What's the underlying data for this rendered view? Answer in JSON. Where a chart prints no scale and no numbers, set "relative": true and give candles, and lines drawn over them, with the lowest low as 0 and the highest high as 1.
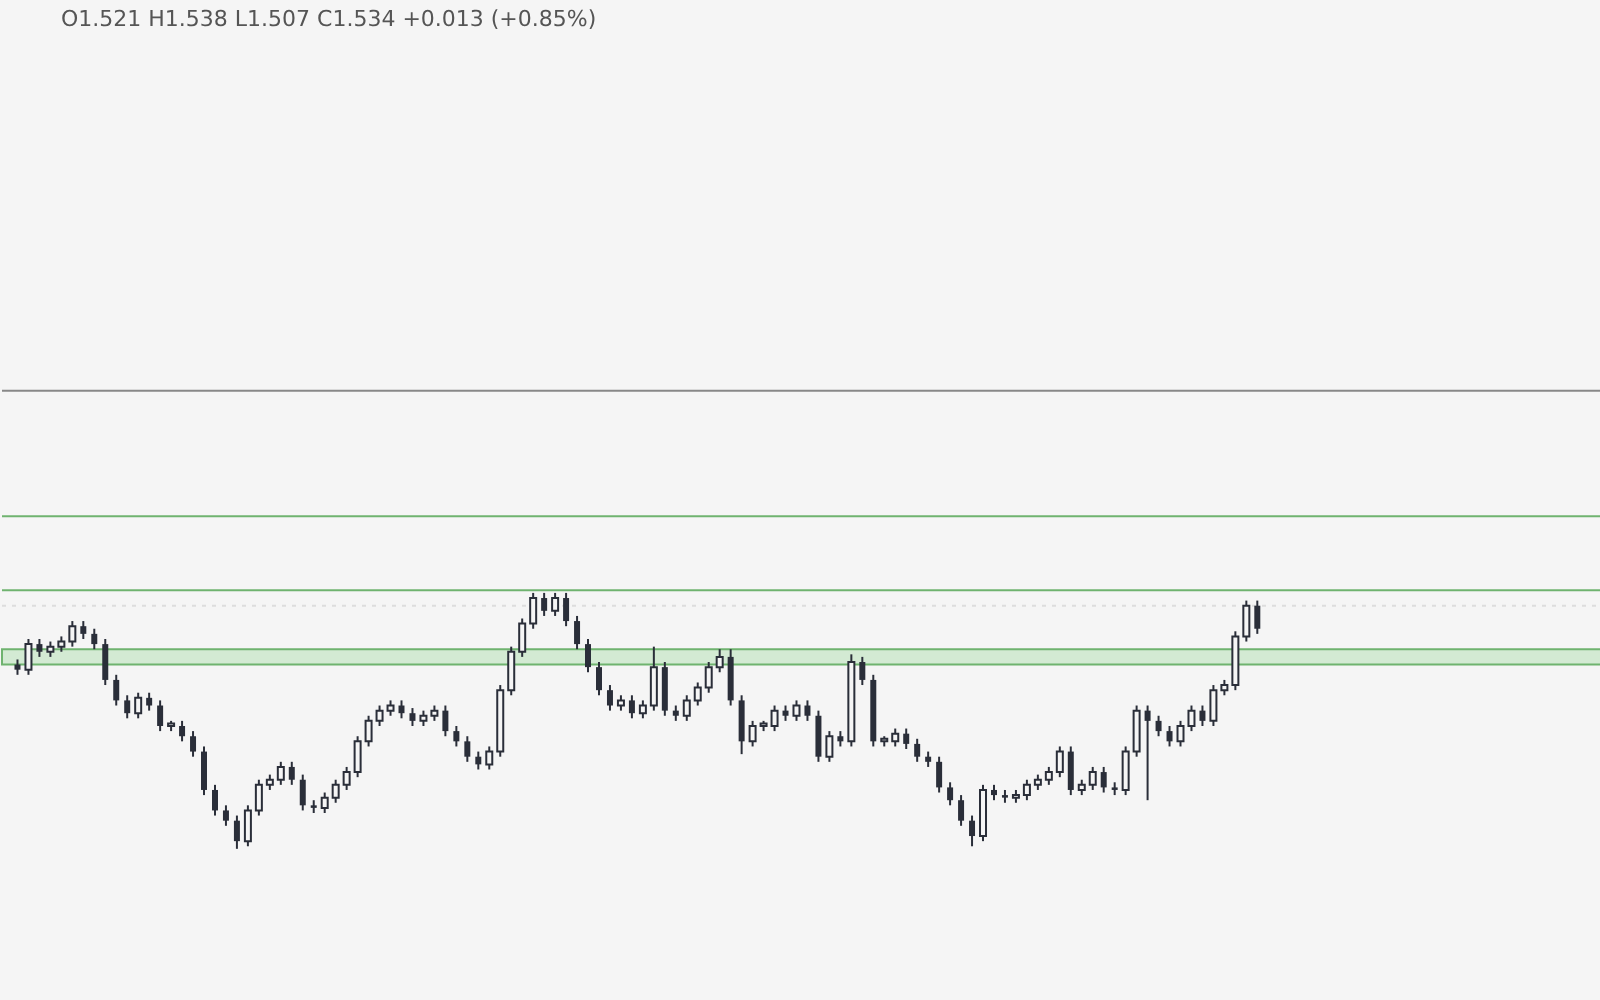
{
  "chart_data": {
    "type": "candlestick",
    "title": "O1.521 H1.538 L1.507 C1.534 +0.013 (+0.85%)",
    "relative": true,
    "tick_labels": false,
    "grid": false,
    "color": "#2a2e39",
    "categories": [
      null,
      null,
      null,
      null,
      null,
      null,
      null,
      null,
      null,
      null,
      null,
      null,
      null,
      null,
      null,
      null,
      null,
      null,
      null,
      null,
      null,
      null,
      null,
      null,
      null,
      null,
      null,
      null,
      null,
      null,
      null,
      null,
      null,
      null,
      null,
      null,
      null,
      null,
      null,
      null,
      null,
      null,
      null,
      null,
      null,
      null,
      null,
      null,
      null,
      null,
      null,
      null,
      null,
      null,
      null,
      null,
      null,
      null,
      null,
      null,
      null,
      null,
      null,
      null,
      null,
      null,
      null,
      null,
      null,
      null,
      null,
      null,
      null,
      null,
      null,
      null,
      null,
      null,
      null,
      null,
      null,
      null,
      null,
      null,
      null,
      null,
      null,
      null,
      null,
      null,
      null,
      null,
      null,
      null,
      null,
      null,
      null,
      null,
      null,
      null,
      null,
      null,
      null,
      null,
      null,
      null,
      null,
      null,
      null,
      null,
      null,
      null,
      null,
      null
    ],
    "ohlc": [
      [
        0.72,
        0.74,
        0.68,
        0.7
      ],
      [
        0.7,
        0.82,
        0.68,
        0.8
      ],
      [
        0.8,
        0.82,
        0.75,
        0.77
      ],
      [
        0.77,
        0.81,
        0.75,
        0.79
      ],
      [
        0.79,
        0.83,
        0.77,
        0.81
      ],
      [
        0.81,
        0.89,
        0.79,
        0.87
      ],
      [
        0.87,
        0.89,
        0.82,
        0.84
      ],
      [
        0.84,
        0.86,
        0.78,
        0.8
      ],
      [
        0.8,
        0.82,
        0.64,
        0.66
      ],
      [
        0.66,
        0.68,
        0.56,
        0.58
      ],
      [
        0.58,
        0.6,
        0.51,
        0.53
      ],
      [
        0.53,
        0.61,
        0.51,
        0.59
      ],
      [
        0.59,
        0.61,
        0.54,
        0.56
      ],
      [
        0.56,
        0.58,
        0.46,
        0.48
      ],
      [
        0.48,
        0.5,
        0.46,
        0.49
      ],
      [
        0.48,
        0.5,
        0.42,
        0.44
      ],
      [
        0.44,
        0.46,
        0.36,
        0.38
      ],
      [
        0.38,
        0.4,
        0.21,
        0.23
      ],
      [
        0.23,
        0.25,
        0.13,
        0.15
      ],
      [
        0.15,
        0.17,
        0.09,
        0.11
      ],
      [
        0.11,
        0.13,
        0.0,
        0.03
      ],
      [
        0.03,
        0.17,
        0.01,
        0.15
      ],
      [
        0.15,
        0.27,
        0.13,
        0.25
      ],
      [
        0.25,
        0.29,
        0.23,
        0.27
      ],
      [
        0.27,
        0.34,
        0.25,
        0.32
      ],
      [
        0.32,
        0.34,
        0.25,
        0.27
      ],
      [
        0.27,
        0.29,
        0.15,
        0.17
      ],
      [
        0.17,
        0.19,
        0.14,
        0.16
      ],
      [
        0.16,
        0.22,
        0.14,
        0.2
      ],
      [
        0.2,
        0.27,
        0.18,
        0.25
      ],
      [
        0.25,
        0.32,
        0.23,
        0.3
      ],
      [
        0.3,
        0.44,
        0.28,
        0.42
      ],
      [
        0.42,
        0.52,
        0.4,
        0.5
      ],
      [
        0.5,
        0.56,
        0.48,
        0.54
      ],
      [
        0.54,
        0.58,
        0.52,
        0.56
      ],
      [
        0.56,
        0.58,
        0.51,
        0.53
      ],
      [
        0.53,
        0.55,
        0.48,
        0.5
      ],
      [
        0.5,
        0.54,
        0.48,
        0.52
      ],
      [
        0.52,
        0.56,
        0.5,
        0.54
      ],
      [
        0.54,
        0.56,
        0.44,
        0.46
      ],
      [
        0.46,
        0.48,
        0.4,
        0.42
      ],
      [
        0.42,
        0.44,
        0.34,
        0.36
      ],
      [
        0.36,
        0.38,
        0.31,
        0.33
      ],
      [
        0.33,
        0.4,
        0.31,
        0.38
      ],
      [
        0.38,
        0.64,
        0.36,
        0.62
      ],
      [
        0.62,
        0.79,
        0.6,
        0.77
      ],
      [
        0.77,
        0.9,
        0.75,
        0.88
      ],
      [
        0.88,
        1.0,
        0.86,
        0.98
      ],
      [
        0.98,
        1.0,
        0.91,
        0.93
      ],
      [
        0.93,
        1.0,
        0.91,
        0.98
      ],
      [
        0.98,
        1.0,
        0.87,
        0.89
      ],
      [
        0.89,
        0.91,
        0.78,
        0.8
      ],
      [
        0.8,
        0.82,
        0.69,
        0.71
      ],
      [
        0.71,
        0.73,
        0.6,
        0.62
      ],
      [
        0.62,
        0.64,
        0.54,
        0.56
      ],
      [
        0.56,
        0.6,
        0.54,
        0.58
      ],
      [
        0.58,
        0.6,
        0.51,
        0.53
      ],
      [
        0.53,
        0.58,
        0.51,
        0.56
      ],
      [
        0.56,
        0.79,
        0.54,
        0.71
      ],
      [
        0.71,
        0.73,
        0.52,
        0.54
      ],
      [
        0.54,
        0.56,
        0.5,
        0.52
      ],
      [
        0.52,
        0.6,
        0.5,
        0.58
      ],
      [
        0.58,
        0.65,
        0.56,
        0.63
      ],
      [
        0.63,
        0.73,
        0.61,
        0.71
      ],
      [
        0.71,
        0.78,
        0.69,
        0.75
      ],
      [
        0.75,
        0.78,
        0.56,
        0.58
      ],
      [
        0.58,
        0.6,
        0.37,
        0.42
      ],
      [
        0.42,
        0.5,
        0.4,
        0.48
      ],
      [
        0.48,
        0.5,
        0.46,
        0.49
      ],
      [
        0.48,
        0.56,
        0.46,
        0.54
      ],
      [
        0.54,
        0.56,
        0.5,
        0.52
      ],
      [
        0.52,
        0.58,
        0.5,
        0.56
      ],
      [
        0.56,
        0.58,
        0.5,
        0.52
      ],
      [
        0.52,
        0.54,
        0.34,
        0.36
      ],
      [
        0.36,
        0.46,
        0.34,
        0.44
      ],
      [
        0.44,
        0.46,
        0.4,
        0.42
      ],
      [
        0.42,
        0.76,
        0.4,
        0.73
      ],
      [
        0.73,
        0.75,
        0.64,
        0.66
      ],
      [
        0.66,
        0.68,
        0.4,
        0.42
      ],
      [
        0.42,
        0.44,
        0.4,
        0.43
      ],
      [
        0.42,
        0.47,
        0.4,
        0.45
      ],
      [
        0.45,
        0.47,
        0.39,
        0.41
      ],
      [
        0.41,
        0.43,
        0.34,
        0.36
      ],
      [
        0.36,
        0.38,
        0.32,
        0.34
      ],
      [
        0.34,
        0.36,
        0.22,
        0.24
      ],
      [
        0.24,
        0.26,
        0.17,
        0.19
      ],
      [
        0.19,
        0.21,
        0.09,
        0.11
      ],
      [
        0.11,
        0.13,
        0.01,
        0.05
      ],
      [
        0.05,
        0.25,
        0.03,
        0.23
      ],
      [
        0.23,
        0.25,
        0.19,
        0.21
      ],
      [
        0.21,
        0.23,
        0.18,
        0.2
      ],
      [
        0.2,
        0.23,
        0.18,
        0.21
      ],
      [
        0.21,
        0.27,
        0.19,
        0.25
      ],
      [
        0.25,
        0.29,
        0.23,
        0.27
      ],
      [
        0.27,
        0.32,
        0.25,
        0.3
      ],
      [
        0.3,
        0.4,
        0.28,
        0.38
      ],
      [
        0.38,
        0.4,
        0.21,
        0.23
      ],
      [
        0.23,
        0.27,
        0.21,
        0.25
      ],
      [
        0.25,
        0.32,
        0.23,
        0.3
      ],
      [
        0.3,
        0.32,
        0.22,
        0.24
      ],
      [
        0.24,
        0.26,
        0.21,
        0.23
      ],
      [
        0.23,
        0.4,
        0.21,
        0.38
      ],
      [
        0.38,
        0.56,
        0.36,
        0.54
      ],
      [
        0.54,
        0.56,
        0.19,
        0.5
      ],
      [
        0.5,
        0.52,
        0.44,
        0.46
      ],
      [
        0.46,
        0.48,
        0.4,
        0.42
      ],
      [
        0.42,
        0.5,
        0.4,
        0.48
      ],
      [
        0.48,
        0.56,
        0.46,
        0.54
      ],
      [
        0.54,
        0.56,
        0.48,
        0.5
      ],
      [
        0.5,
        0.64,
        0.48,
        0.62
      ],
      [
        0.62,
        0.66,
        0.6,
        0.64
      ],
      [
        0.64,
        0.85,
        0.62,
        0.83
      ],
      [
        0.83,
        0.97,
        0.81,
        0.95
      ],
      [
        0.95,
        0.97,
        0.84,
        0.86
      ]
    ],
    "ref_lines": [
      {
        "axis": "y",
        "value": 1.79,
        "color": "#888888",
        "line_style": "solid"
      },
      {
        "axis": "y",
        "value": 1.3,
        "color": "#6fb36f",
        "line_style": "solid"
      },
      {
        "axis": "y",
        "value": 1.01,
        "color": "#6fb36f",
        "line_style": "solid"
      },
      {
        "axis": "y",
        "value": 0.95,
        "color": "#dddddd",
        "line_style": "dotted"
      }
    ],
    "bands": [
      {
        "axis": "y",
        "from": 0.72,
        "to": 0.78,
        "color": "#d3ead3"
      }
    ]
  }
}
